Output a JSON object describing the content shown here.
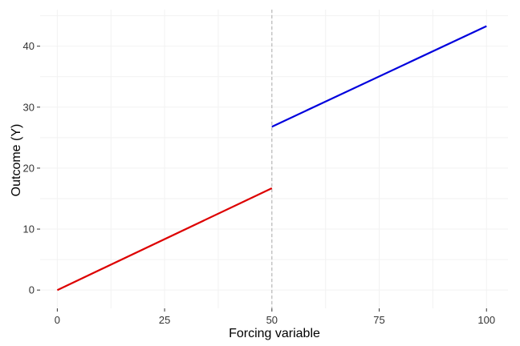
{
  "chart_data": {
    "type": "line",
    "title": "",
    "xlabel": "Forcing variable",
    "ylabel": "Outcome (Y)",
    "xlim": [
      -4,
      105
    ],
    "ylim": [
      -3,
      46
    ],
    "x_ticks": [
      0,
      25,
      50,
      75,
      100
    ],
    "y_ticks": [
      0,
      10,
      20,
      30,
      40
    ],
    "grid": true,
    "cutoff": 50,
    "series": [
      {
        "color": "#dd0000",
        "points": [
          [
            0,
            0
          ],
          [
            50,
            16.7
          ]
        ]
      },
      {
        "color": "#0000dd",
        "points": [
          [
            50,
            26.8
          ],
          [
            100,
            43.3
          ]
        ]
      }
    ],
    "colors": {
      "grid": "#f2f2f2",
      "cutoff_line": "#a9a9a9"
    }
  }
}
